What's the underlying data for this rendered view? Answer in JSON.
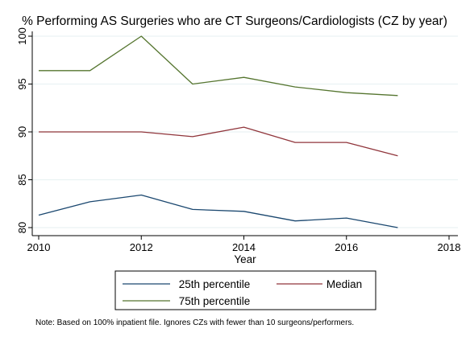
{
  "chart_data": {
    "type": "line",
    "title": "% Performing AS Surgeries who are CT Surgeons/Cardiologists (CZ by year)",
    "xlabel": "Year",
    "ylabel": "",
    "xlim": [
      2010,
      2018
    ],
    "ylim": [
      80,
      100
    ],
    "xticks": [
      2010,
      2012,
      2014,
      2016,
      2018
    ],
    "yticks": [
      80,
      85,
      90,
      95,
      100
    ],
    "grid": true,
    "legend_position": "bottom",
    "note": "Note: Based on 100% inpatient file. Ignores CZs with fewer than 10 surgeons/performers.",
    "x": [
      2010,
      2011,
      2012,
      2013,
      2014,
      2015,
      2016,
      2017
    ],
    "series": [
      {
        "name": "25th percentile",
        "color": "#1a476f",
        "values": [
          81.3,
          82.7,
          83.4,
          81.9,
          81.7,
          80.7,
          81.0,
          80.0
        ]
      },
      {
        "name": "Median",
        "color": "#90353b",
        "values": [
          90.0,
          90.0,
          90.0,
          89.5,
          90.5,
          88.9,
          88.9,
          87.5
        ]
      },
      {
        "name": "75th percentile",
        "color": "#55752f",
        "values": [
          96.4,
          96.4,
          100.0,
          95.0,
          95.7,
          94.7,
          94.1,
          93.8
        ]
      }
    ]
  }
}
